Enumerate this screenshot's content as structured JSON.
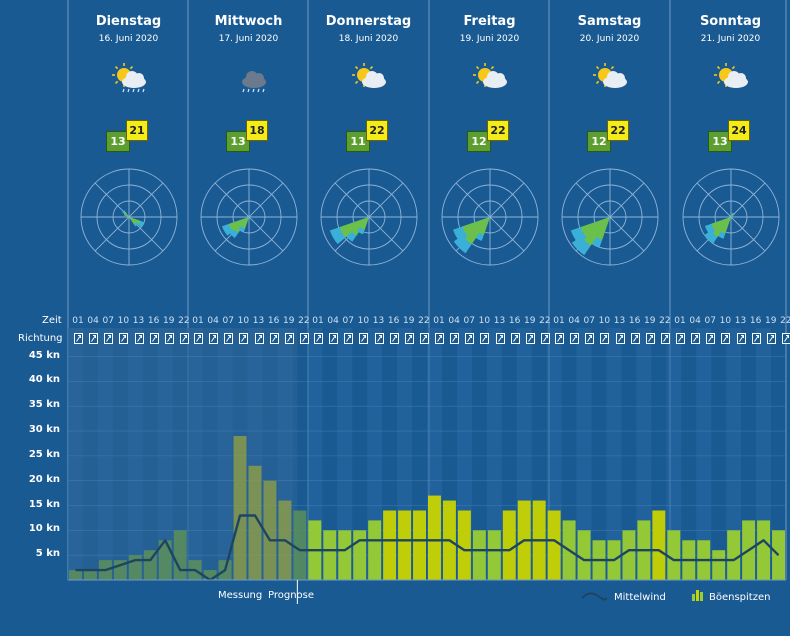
{
  "days": [
    {
      "name": "Dienstag",
      "date": "16. Juni 2020",
      "icon": "partly-cloudy-rain-icon",
      "tmin": "13",
      "tmax": "21",
      "rose": [
        [
          120,
          0.35
        ],
        [
          135,
          0.25
        ],
        [
          300,
          0.12
        ],
        [
          315,
          0.18
        ]
      ]
    },
    {
      "name": "Mittwoch",
      "date": "17. Juni 2020",
      "icon": "rain-cloud-icon",
      "tmin": "13",
      "tmax": "18",
      "rose": [
        [
          225,
          0.55
        ],
        [
          240,
          0.62
        ],
        [
          210,
          0.35
        ],
        [
          45,
          0.05
        ]
      ]
    },
    {
      "name": "Donnerstag",
      "date": "18. Juni 2020",
      "icon": "sun-cloud-icon",
      "tmin": "11",
      "tmax": "22",
      "rose": [
        [
          225,
          0.65
        ],
        [
          240,
          0.9
        ],
        [
          210,
          0.4
        ]
      ]
    },
    {
      "name": "Freitag",
      "date": "19. Juni 2020",
      "icon": "sun-cloud-icon",
      "tmin": "12",
      "tmax": "22",
      "rose": [
        [
          210,
          0.55
        ],
        [
          225,
          0.95
        ],
        [
          240,
          0.85
        ]
      ]
    },
    {
      "name": "Samstag",
      "date": "20. Juni 2020",
      "icon": "sun-cloud-icon",
      "tmin": "12",
      "tmax": "22",
      "rose": [
        [
          210,
          0.7
        ],
        [
          225,
          1.0
        ],
        [
          240,
          0.9
        ]
      ]
    },
    {
      "name": "Sonntag",
      "date": "21. Juni 2020",
      "icon": "sun-cloud-icon",
      "tmin": "13",
      "tmax": "24",
      "rose": [
        [
          210,
          0.5
        ],
        [
          225,
          0.7
        ],
        [
          240,
          0.6
        ],
        [
          45,
          0.1
        ],
        [
          30,
          0.1
        ]
      ]
    }
  ],
  "labels": {
    "zeit": "Zeit",
    "richtung": "Richtung",
    "messung": "Messung",
    "prognose": "Prognose",
    "mittelwind": "Mittelwind",
    "boenspitzen": "Böenspitzen"
  },
  "hour_ticks": [
    "01",
    "04",
    "07",
    "10",
    "13",
    "16",
    "19",
    "22"
  ],
  "colors": {
    "background": "#1a5a93",
    "forecast_bar": "#9acd32",
    "gust_yellow": "#c8d400",
    "line": "#1e4560",
    "measured_bar": "#8aa08a"
  },
  "chart_data": {
    "type": "bar",
    "title": "",
    "xlabel": "Zeit",
    "ylabel": "",
    "ylim": [
      0,
      50
    ],
    "yticks": [
      "5 kn",
      "10 kn",
      "15 kn",
      "20 kn",
      "25 kn",
      "30 kn",
      "35 kn",
      "40 kn",
      "45 kn"
    ],
    "ytick_values": [
      5,
      10,
      15,
      20,
      25,
      30,
      35,
      40,
      45
    ],
    "x_unit": "hours from Tuesday 00:00 (3-hour steps)",
    "messung_end_hour": 46,
    "series": [
      {
        "name": "Böenspitzen",
        "kind": "bar",
        "values": [
          2,
          2,
          4,
          4,
          5,
          6,
          8,
          10,
          4,
          2,
          4,
          29,
          23,
          20,
          16,
          14,
          12,
          10,
          10,
          10,
          12,
          14,
          14,
          14,
          17,
          16,
          14,
          10,
          10,
          14,
          16,
          16,
          14,
          12,
          10,
          8,
          8,
          10,
          12,
          14,
          10,
          8,
          8,
          6,
          10,
          12,
          12,
          10
        ]
      },
      {
        "name": "Mittelwind",
        "kind": "line",
        "values": [
          2,
          2,
          2,
          3,
          4,
          4,
          8,
          2,
          2,
          0,
          2,
          13,
          13,
          8,
          8,
          6,
          6,
          6,
          6,
          8,
          8,
          8,
          8,
          8,
          8,
          8,
          6,
          6,
          6,
          6,
          8,
          8,
          8,
          6,
          4,
          4,
          4,
          6,
          6,
          6,
          4,
          4,
          4,
          4,
          4,
          6,
          8,
          5
        ]
      }
    ]
  }
}
